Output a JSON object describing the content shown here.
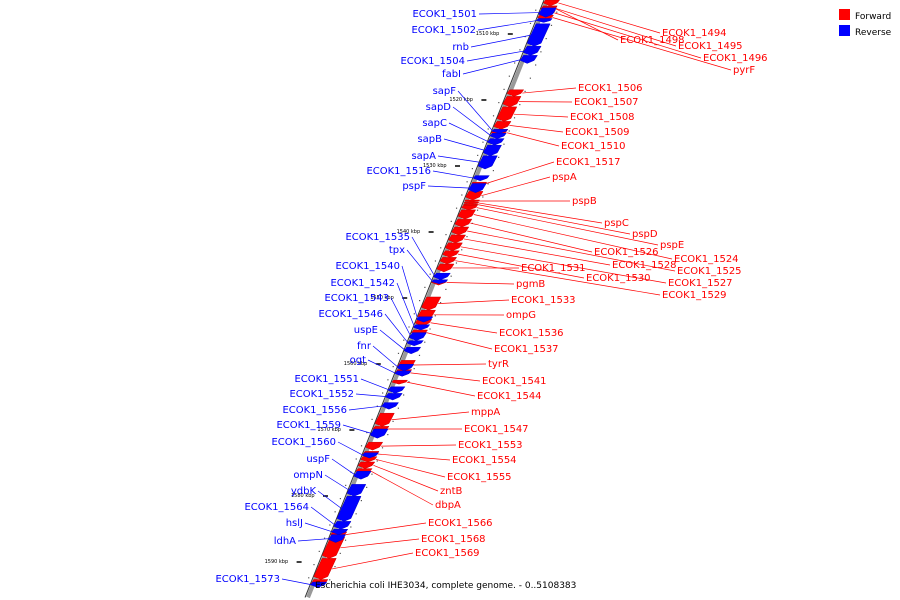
{
  "colors": {
    "forward": "#ff0000",
    "reverse": "#0000ff",
    "backbone": "#999999"
  },
  "legend": [
    {
      "label": "Forward",
      "color": "#ff0000"
    },
    {
      "label": "Reverse",
      "color": "#0000ff"
    }
  ],
  "caption": "Escherichia coli IHE3034, complete genome. - 0..5108383",
  "backbone": {
    "start_kbp": 1505,
    "end_kbp": 1594
  },
  "ticks": [
    {
      "kbp": 1510,
      "label": "1510 kbp"
    },
    {
      "kbp": 1520,
      "label": "1520 kbp"
    },
    {
      "kbp": 1530,
      "label": "1530 kbp"
    },
    {
      "kbp": 1540,
      "label": "1540 kbp"
    },
    {
      "kbp": 1550,
      "label": "1550 kbp"
    },
    {
      "kbp": 1560,
      "label": "1560 kbp"
    },
    {
      "kbp": 1570,
      "label": "1570 kbp"
    },
    {
      "kbp": 1580,
      "label": "1580 kbp"
    },
    {
      "kbp": 1590,
      "label": "1590 kbp"
    }
  ],
  "forward_genes": [
    {
      "name": "ECOK1_1494",
      "start": 1505.0,
      "end": 1505.9
    },
    {
      "name": "ECOK1_1498",
      "start": 1505.9,
      "end": 1506.8
    },
    {
      "name": "ECOK1_1495",
      "start": 1506.0,
      "end": 1506.6
    },
    {
      "name": "ECOK1_1496",
      "start": 1506.6,
      "end": 1507.3
    },
    {
      "name": "pyrF",
      "start": 1507.3,
      "end": 1508.0
    },
    {
      "name": "ECOK1_1506",
      "start": 1518.6,
      "end": 1519.6
    },
    {
      "name": "ECOK1_1507",
      "start": 1519.6,
      "end": 1521.2
    },
    {
      "name": "ECOK1_1508",
      "start": 1521.2,
      "end": 1523.4
    },
    {
      "name": "ECOK1_1509",
      "start": 1523.4,
      "end": 1524.6
    },
    {
      "name": "ECOK1_1510",
      "start": 1524.6,
      "end": 1525.6
    },
    {
      "name": "ECOK1_1517",
      "start": 1532.6,
      "end": 1533.0
    },
    {
      "name": "pspA",
      "start": 1534.0,
      "end": 1535.3
    },
    {
      "name": "pspB",
      "start": 1535.3,
      "end": 1535.6
    },
    {
      "name": "pspC",
      "start": 1535.6,
      "end": 1535.9
    },
    {
      "name": "pspD",
      "start": 1535.9,
      "end": 1536.1
    },
    {
      "name": "pspE",
      "start": 1536.1,
      "end": 1536.8
    },
    {
      "name": "ECOK1_1524",
      "start": 1536.8,
      "end": 1538.2
    },
    {
      "name": "ECOK1_1526",
      "start": 1538.2,
      "end": 1539.4
    },
    {
      "name": "ECOK1_1525",
      "start": 1539.4,
      "end": 1540.6
    },
    {
      "name": "ECOK1_1528",
      "start": 1540.6,
      "end": 1541.8
    },
    {
      "name": "ECOK1_1527",
      "start": 1541.8,
      "end": 1543.0
    },
    {
      "name": "ECOK1_1530",
      "start": 1543.0,
      "end": 1544.0
    },
    {
      "name": "ECOK1_1529",
      "start": 1544.0,
      "end": 1545.0
    },
    {
      "name": "ECOK1_1531",
      "start": 1545.0,
      "end": 1546.2
    },
    {
      "name": "pgmB",
      "start": 1547.4,
      "end": 1548.2
    },
    {
      "name": "ECOK1_1533",
      "start": 1550.0,
      "end": 1552.0
    },
    {
      "name": "ompG",
      "start": 1552.0,
      "end": 1553.4
    },
    {
      "name": "ECOK1_1536",
      "start": 1553.4,
      "end": 1554.4
    },
    {
      "name": "ECOK1_1537",
      "start": 1555.0,
      "end": 1555.8
    },
    {
      "name": "tyrR",
      "start": 1559.6,
      "end": 1561.0
    },
    {
      "name": "ECOK1_1541",
      "start": 1561.0,
      "end": 1562.0
    },
    {
      "name": "ECOK1_1544",
      "start": 1562.6,
      "end": 1563.2
    },
    {
      "name": "mppA",
      "start": 1567.6,
      "end": 1569.6
    },
    {
      "name": "ECOK1_1547",
      "start": 1569.6,
      "end": 1570.4
    },
    {
      "name": "ECOK1_1553",
      "start": 1572.0,
      "end": 1573.2
    },
    {
      "name": "ECOK1_1554",
      "start": 1573.4,
      "end": 1574.2
    },
    {
      "name": "ECOK1_1555",
      "start": 1574.2,
      "end": 1575.0
    },
    {
      "name": "zntB",
      "start": 1575.0,
      "end": 1576.0
    },
    {
      "name": "dbpA",
      "start": 1576.0,
      "end": 1576.8
    },
    {
      "name": "ECOK1_1566",
      "start": 1585.6,
      "end": 1586.4
    },
    {
      "name": "ECOK1_1568",
      "start": 1586.4,
      "end": 1589.6
    },
    {
      "name": "ECOK1_1569",
      "start": 1589.6,
      "end": 1592.8
    }
  ],
  "forward_extra": [
    {
      "start": 1592.8,
      "end": 1594.0
    }
  ],
  "reverse_genes": [
    {
      "name": "ECOK1_1501",
      "start": 1506.2,
      "end": 1507.6
    },
    {
      "name": "ECOK1_1502",
      "start": 1507.8,
      "end": 1508.4
    },
    {
      "name": "rnb",
      "start": 1508.6,
      "end": 1512.0
    },
    {
      "name": "ECOK1_1504",
      "start": 1512.0,
      "end": 1513.4
    },
    {
      "name": "fabI",
      "start": 1513.4,
      "end": 1514.6
    },
    {
      "name": "sapF",
      "start": 1524.6,
      "end": 1525.2
    },
    {
      "name": "sapD",
      "start": 1525.2,
      "end": 1526.0
    },
    {
      "name": "sapC",
      "start": 1526.0,
      "end": 1527.0
    },
    {
      "name": "sapB",
      "start": 1527.0,
      "end": 1528.6
    },
    {
      "name": "sapA",
      "start": 1528.6,
      "end": 1530.6
    },
    {
      "name": "ECOK1_1516",
      "start": 1531.6,
      "end": 1532.4
    },
    {
      "name": "pspF",
      "start": 1532.8,
      "end": 1534.2
    },
    {
      "name": "ECOK1_1535",
      "start": 1546.4,
      "end": 1547.4
    },
    {
      "name": "tpx",
      "start": 1547.4,
      "end": 1548.0
    },
    {
      "name": "ECOK1_1540",
      "start": 1553.0,
      "end": 1553.8
    },
    {
      "name": "ECOK1_1542",
      "start": 1554.2,
      "end": 1555.0
    },
    {
      "name": "ECOK1_1543",
      "start": 1555.4,
      "end": 1556.6
    },
    {
      "name": "ECOK1_1546",
      "start": 1556.6,
      "end": 1557.4
    },
    {
      "name": "uspE",
      "start": 1557.6,
      "end": 1558.6
    },
    {
      "name": "fnr",
      "start": 1560.2,
      "end": 1561.2
    },
    {
      "name": "ogt",
      "start": 1561.2,
      "end": 1562.0
    },
    {
      "name": "ECOK1_1551",
      "start": 1563.6,
      "end": 1564.6
    },
    {
      "name": "ECOK1_1552",
      "start": 1564.6,
      "end": 1565.6
    },
    {
      "name": "ECOK1_1556",
      "start": 1566.0,
      "end": 1567.0
    },
    {
      "name": "ECOK1_1559",
      "start": 1570.0,
      "end": 1571.4
    },
    {
      "name": "ECOK1_1560",
      "start": 1573.6,
      "end": 1574.4
    },
    {
      "name": "uspF",
      "start": 1576.4,
      "end": 1577.6
    },
    {
      "name": "ompN",
      "start": 1578.4,
      "end": 1580.2
    },
    {
      "name": "ydbK",
      "start": 1580.2,
      "end": 1584.0
    },
    {
      "name": "ECOK1_1564",
      "start": 1584.0,
      "end": 1585.2
    },
    {
      "name": "hslJ",
      "start": 1585.2,
      "end": 1586.0
    },
    {
      "name": "ldhA",
      "start": 1586.0,
      "end": 1587.2
    },
    {
      "name": "ECOK1_1573",
      "start": 1593.2,
      "end": 1594.0
    }
  ]
}
